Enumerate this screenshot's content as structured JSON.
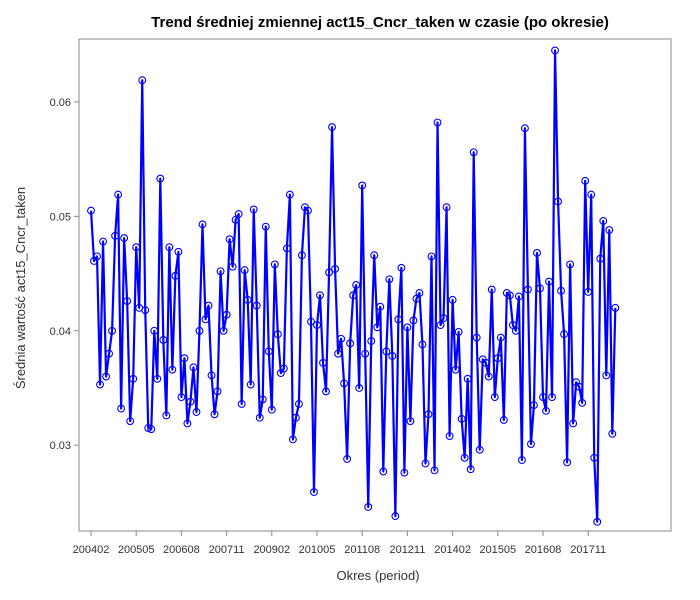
{
  "colors": {
    "line": "#0000ff",
    "marker": "#0000ff",
    "frame": "#888888",
    "text": "#333333"
  },
  "chart_data": {
    "type": "line",
    "title": "Trend średniej zmiennej act15_Cncr_taken w czasie (po okresie)",
    "xlabel": "Okres (period)",
    "ylabel": "Średnia wartość act15_Cncr_taken",
    "x_tick_labels": [
      "200402",
      "200505",
      "200608",
      "200711",
      "200902",
      "201005",
      "201108",
      "201211",
      "201402",
      "201505",
      "201608",
      "201711"
    ],
    "y_ticks": [
      0.03,
      0.04,
      0.05,
      0.06
    ],
    "y_tick_labels": [
      "0.03",
      "0.04",
      "0.05",
      "0.06"
    ],
    "ylim": [
      0.0225,
      0.0655
    ],
    "x_start": "200402",
    "x_end": "201806",
    "marker": "open-circle",
    "grid": false,
    "legend": "none",
    "series": [
      {
        "values": [
          0.0505,
          0.0461,
          0.0465,
          0.0353,
          0.0478,
          0.036,
          0.038,
          0.04,
          0.0483,
          0.0519,
          0.0332,
          0.0481,
          0.0426,
          0.0321,
          0.0358,
          0.0473,
          0.042,
          0.0619,
          0.0418,
          0.0315,
          0.0314,
          0.04,
          0.0358,
          0.0533,
          0.0392,
          0.0326,
          0.0473,
          0.0366,
          0.0448,
          0.0469,
          0.0342,
          0.0376,
          0.0319,
          0.0338,
          0.0368,
          0.0329,
          0.04,
          0.0493,
          0.041,
          0.0422,
          0.0361,
          0.0327,
          0.0347,
          0.0452,
          0.04,
          0.0414,
          0.048,
          0.0456,
          0.0497,
          0.0502,
          0.0336,
          0.0453,
          0.0427,
          0.0353,
          0.0506,
          0.0422,
          0.0324,
          0.034,
          0.0491,
          0.0382,
          0.0331,
          0.0458,
          0.0397,
          0.0363,
          0.0367,
          0.0472,
          0.0519,
          0.0305,
          0.0324,
          0.0336,
          0.0466,
          0.0508,
          0.0505,
          0.0408,
          0.0259,
          0.0405,
          0.0431,
          0.0372,
          0.0347,
          0.0451,
          0.0578,
          0.0454,
          0.038,
          0.0393,
          0.0354,
          0.0288,
          0.0389,
          0.0431,
          0.044,
          0.035,
          0.0527,
          0.038,
          0.0246,
          0.0391,
          0.0466,
          0.0403,
          0.0421,
          0.0277,
          0.0382,
          0.0445,
          0.0378,
          0.0238,
          0.041,
          0.0455,
          0.0276,
          0.0403,
          0.0321,
          0.0409,
          0.0428,
          0.0433,
          0.0388,
          0.0284,
          0.0327,
          0.0465,
          0.0278,
          0.0582,
          0.0405,
          0.0411,
          0.0508,
          0.0308,
          0.0427,
          0.0366,
          0.0399,
          0.0323,
          0.0289,
          0.0358,
          0.0279,
          0.0556,
          0.0394,
          0.0296,
          0.0375,
          0.0372,
          0.036,
          0.0436,
          0.0342,
          0.0376,
          0.0394,
          0.0322,
          0.0433,
          0.0431,
          0.0405,
          0.04,
          0.043,
          0.0287,
          0.0577,
          0.0436,
          0.0301,
          0.0335,
          0.0468,
          0.0437,
          0.0342,
          0.033,
          0.0443,
          0.0342,
          0.0645,
          0.0513,
          0.0435,
          0.0397,
          0.0285,
          0.0458,
          0.0319,
          0.0355,
          0.0351,
          0.0337,
          0.0531,
          0.0434,
          0.0519,
          0.0289,
          0.0233,
          0.0463,
          0.0496,
          0.0361,
          0.0488,
          0.031,
          0.042
        ]
      }
    ]
  }
}
